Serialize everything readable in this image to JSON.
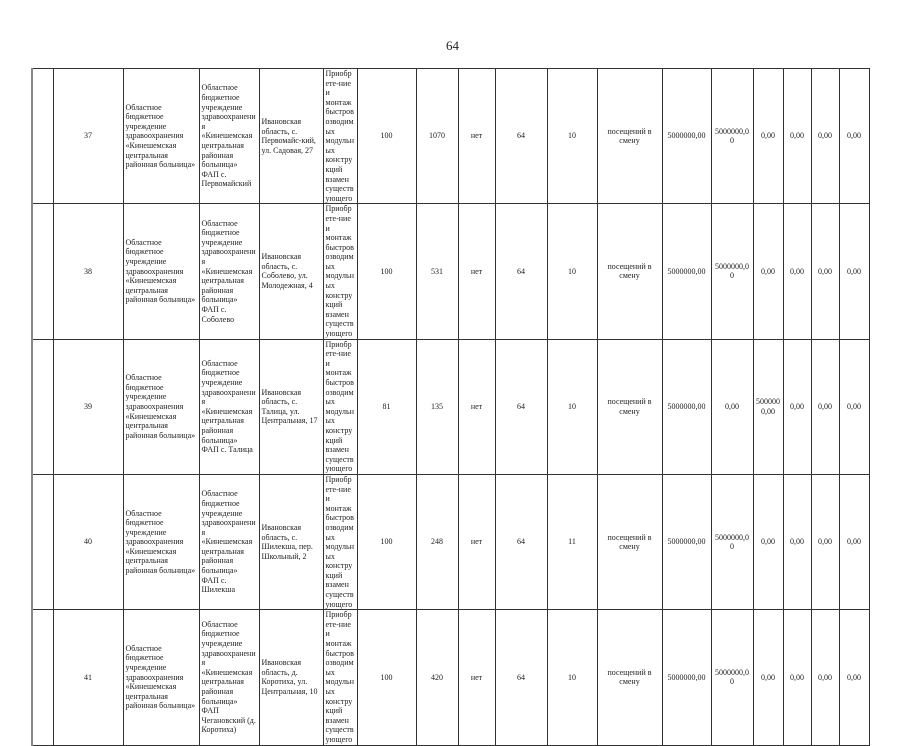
{
  "page_number": "64",
  "rows": [
    {
      "num": "37",
      "org": "Областное бюджетное учреждение здравоохранения «Кинешемская центральная районная больница»",
      "fap": "Областное бюджетное учреждение здравоохранения «Кинешемская центральная районная больница» ФАП с. Первомайский",
      "address": "Ивановская область, с. Первомайс-кий, ул. Садовая, 27",
      "work": "Приобрете-ние и монтаж быстровозводимых модульных конструкций взамен существующего",
      "c6": "100",
      "c7": "1070",
      "c8": "нет",
      "c9": "64",
      "c10": "10",
      "unit": "посещений в смену",
      "c12": "5000000,00",
      "c13": "5000000,00",
      "c14": "0,00",
      "c15": "0,00",
      "c16": "0,00",
      "c17": "0,00"
    },
    {
      "num": "38",
      "org": "Областное бюджетное учреждение здравоохранения «Кинешемская центральная районная больница»",
      "fap": "Областное бюджетное учреждение здравоохранения «Кинешемская центральная районная больница» ФАП с. Соболево",
      "address": "Ивановская область, с. Соболево, ул. Молодежная, 4",
      "work": "Приобрете-ние и монтаж быстровозводимых модульных конструкций взамен существующего",
      "c6": "100",
      "c7": "531",
      "c8": "нет",
      "c9": "64",
      "c10": "10",
      "unit": "посещений в смену",
      "c12": "5000000,00",
      "c13": "5000000,00",
      "c14": "0,00",
      "c15": "0,00",
      "c16": "0,00",
      "c17": "0,00"
    },
    {
      "num": "39",
      "org": "Областное бюджетное учреждение здравоохранения «Кинешемская центральная районная больница»",
      "fap": "Областное бюджетное учреждение здравоохранения «Кинешемская центральная районная больница» ФАП с. Талица",
      "address": "Ивановская область, с. Талица, ул. Центральная, 17",
      "work": "Приобрете-ние и монтаж быстровозводимых модульных конструкций взамен существующего",
      "c6": "81",
      "c7": "135",
      "c8": "нет",
      "c9": "64",
      "c10": "10",
      "unit": "посещений в смену",
      "c12": "5000000,00",
      "c13": "0,00",
      "c14": "5000000,00",
      "c15": "0,00",
      "c16": "0,00",
      "c17": "0,00"
    },
    {
      "num": "40",
      "org": "Областное бюджетное учреждение здравоохранения «Кинешемская центральная районная больница»",
      "fap": "Областное бюджетное учреждение здравоохранения «Кинешемская центральная районная больница» ФАП с. Шилекша",
      "address": "Ивановская область, с. Шилекша, пер. Школьный, 2",
      "work": "Приобрете-ние и монтаж быстровозводимых модульных конструкций взамен существующего",
      "c6": "100",
      "c7": "248",
      "c8": "нет",
      "c9": "64",
      "c10": "11",
      "unit": "посещений в смену",
      "c12": "5000000,00",
      "c13": "5000000,00",
      "c14": "0,00",
      "c15": "0,00",
      "c16": "0,00",
      "c17": "0,00"
    },
    {
      "num": "41",
      "org": "Областное бюджетное учреждение здравоохранения «Кинешемская центральная районная больница»",
      "fap": "Областное бюджетное учреждение здравоохранения «Кинешемская центральная районная больница» ФАП Чегановский (д. Коротиха)",
      "address": "Ивановская область, д. Коротиха, ул. Центральная, 10",
      "work": "Приобрете-ние и монтаж быстровозводимых модульных конструкций взамен существующего",
      "c6": "100",
      "c7": "420",
      "c8": "нет",
      "c9": "64",
      "c10": "10",
      "unit": "посещений в смену",
      "c12": "5000000,00",
      "c13": "5000000,00",
      "c14": "0,00",
      "c15": "0,00",
      "c16": "0,00",
      "c17": "0,00"
    }
  ]
}
